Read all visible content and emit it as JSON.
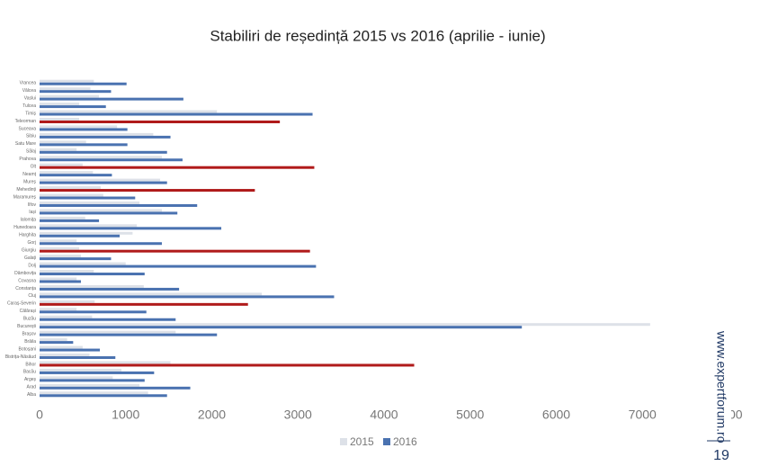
{
  "chart_data": {
    "type": "bar",
    "orientation": "horizontal",
    "title": "Stabiliri de reședință 2015 vs 2016 (aprilie - iunie)",
    "categories": [
      "Vrancea",
      "Vâlcea",
      "Vaslui",
      "Tulcea",
      "Timiș",
      "Teleorman",
      "Suceava",
      "Sibiu",
      "Satu Mare",
      "Sălaj",
      "Prahova",
      "Olt",
      "Neamț",
      "Mureș",
      "Mehedinți",
      "Maramureș",
      "Ilfov",
      "Iași",
      "Ialomița",
      "Hunedoara",
      "Harghita",
      "Gorj",
      "Giurgiu",
      "Galați",
      "Dolj",
      "Dâmbovița",
      "Covasna",
      "Constanța",
      "Cluj",
      "Caraș-Severin",
      "Călărași",
      "Buzău",
      "București",
      "Brașov",
      "Brăila",
      "Botoșani",
      "Bistrița-Năsăud",
      "Bihor",
      "Bacău",
      "Argeș",
      "Arad",
      "Alba"
    ],
    "series": [
      {
        "name": "2015",
        "color": "#dde1e8",
        "values": [
          630,
          590,
          690,
          460,
          2060,
          460,
          900,
          1320,
          540,
          430,
          1420,
          500,
          620,
          1400,
          710,
          740,
          1160,
          1420,
          530,
          1130,
          1080,
          430,
          460,
          480,
          1000,
          630,
          430,
          1210,
          2580,
          640,
          430,
          610,
          7090,
          1580,
          320,
          500,
          580,
          1520,
          950,
          850,
          1160,
          1260
        ]
      },
      {
        "name": "2016",
        "color": "#4a72b0",
        "values": [
          1010,
          830,
          1670,
          770,
          3170,
          2790,
          1020,
          1520,
          1020,
          1480,
          1660,
          3190,
          840,
          1480,
          2500,
          1110,
          1830,
          1600,
          690,
          2110,
          930,
          1420,
          3140,
          830,
          3210,
          1220,
          480,
          1620,
          3420,
          2420,
          1240,
          1580,
          5600,
          2060,
          390,
          700,
          880,
          4350,
          1330,
          1220,
          1750,
          1480
        ],
        "colors": [
          "#4a72b0",
          "#4a72b0",
          "#4a72b0",
          "#4a72b0",
          "#4a72b0",
          "#b01a1a",
          "#4a72b0",
          "#4a72b0",
          "#4a72b0",
          "#4a72b0",
          "#4a72b0",
          "#b01a1a",
          "#4a72b0",
          "#4a72b0",
          "#b01a1a",
          "#4a72b0",
          "#4a72b0",
          "#4a72b0",
          "#4a72b0",
          "#4a72b0",
          "#4a72b0",
          "#4a72b0",
          "#b01a1a",
          "#4a72b0",
          "#4a72b0",
          "#4a72b0",
          "#4a72b0",
          "#4a72b0",
          "#4a72b0",
          "#b01a1a",
          "#4a72b0",
          "#4a72b0",
          "#4a72b0",
          "#4a72b0",
          "#4a72b0",
          "#4a72b0",
          "#4a72b0",
          "#b01a1a",
          "#4a72b0",
          "#4a72b0",
          "#4a72b0",
          "#4a72b0"
        ]
      }
    ],
    "xlim": [
      0,
      8000
    ],
    "xticks": [
      0,
      1000,
      2000,
      3000,
      4000,
      5000,
      6000,
      7000,
      8000
    ],
    "grid": false,
    "legend": "bottom"
  },
  "slide": {
    "site": "www.expertforum.ro",
    "page_number": 19
  }
}
